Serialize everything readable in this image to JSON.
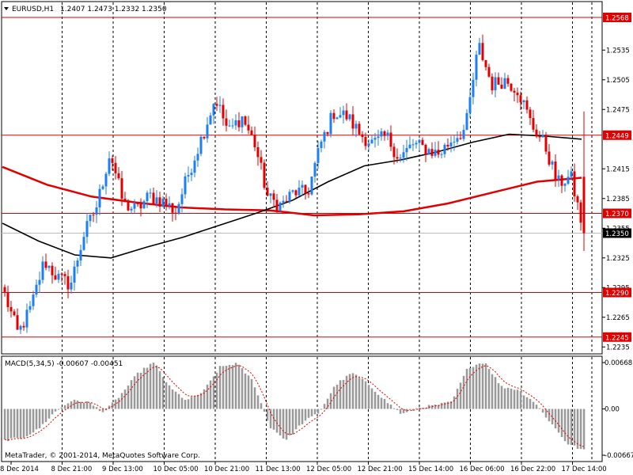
{
  "header": {
    "symbol": "EURUSD,H1",
    "ohlc": "1.2407 1.2473 1.2332 1.2350"
  },
  "macd": {
    "title": "MACD(5,34,5) -0.00607 -0.00451",
    "ticks": [
      "0.00668",
      "0.00",
      "-0.00667"
    ]
  },
  "footer": {
    "copyright": "MetaTrader, © 2001-2014, MetaQuotes Software Corp."
  },
  "colors": {
    "bull": "#1e7ff0",
    "bear": "#e00000",
    "level": "#e00000",
    "ma_slow": "#e00000",
    "ma_fast": "#000000",
    "macd_bar": "#999999",
    "macd_signal": "#e00000"
  },
  "chart_data": {
    "type": "candlestick",
    "price_axis": {
      "ylim": [
        1.2228,
        1.2584
      ],
      "ticks": [
        "1.2535",
        "1.2505",
        "1.2475",
        "1.2415",
        "1.2385",
        "1.2355",
        "1.2325",
        "1.2295",
        "1.2265",
        "1.2235"
      ]
    },
    "levels": [
      {
        "value": 1.2568,
        "label": "1.2568"
      },
      {
        "value": 1.2449,
        "label": "1.2449"
      },
      {
        "value": 1.237,
        "label": "1.2370"
      },
      {
        "value": 1.229,
        "label": "1.2290"
      },
      {
        "value": 1.2245,
        "label": "1.2245"
      }
    ],
    "current_price": {
      "value": 1.235,
      "label": "1.2350"
    },
    "x_labels": [
      "8 Dec 2014",
      "8 Dec 21:00",
      "9 Dec 13:00",
      "10 Dec 05:00",
      "10 Dec 21:00",
      "11 Dec 13:00",
      "12 Dec 05:00",
      "12 Dec 21:00",
      "15 Dec 14:00",
      "16 Dec 06:00",
      "16 Dec 22:00",
      "17 Dec 14:00"
    ],
    "price_anchors": [
      1.2288,
      1.2248,
      1.2275,
      1.2322,
      1.2305,
      1.2298,
      1.2348,
      1.2378,
      1.2432,
      1.238,
      1.2373,
      1.2388,
      1.2382,
      1.2372,
      1.2412,
      1.2448,
      1.2487,
      1.2452,
      1.2468,
      1.244,
      1.2385,
      1.2378,
      1.2392,
      1.239,
      1.244,
      1.2472,
      1.2468,
      1.245,
      1.244,
      1.2448,
      1.2425,
      1.244,
      1.2435,
      1.243,
      1.2445,
      1.2455,
      1.254,
      1.25,
      1.2505,
      1.2495,
      1.246,
      1.244,
      1.24,
      1.2407,
      1.235
    ],
    "ma_fast": [
      1.236,
      1.2342,
      1.2328,
      1.2325,
      1.2336,
      1.2346,
      1.2358,
      1.237,
      1.2383,
      1.2402,
      1.2418,
      1.2424,
      1.2432,
      1.2442,
      1.245,
      1.2448,
      1.2445
    ],
    "ma_slow": [
      1.2417,
      1.2399,
      1.2387,
      1.2381,
      1.2376,
      1.2374,
      1.2373,
      1.2368,
      1.2369,
      1.2372,
      1.238,
      1.2391,
      1.2402,
      1.2406
    ],
    "macd_values": [
      -0.0045,
      -0.0042,
      -0.003,
      -0.0005,
      0.0012,
      0.001,
      -0.0005,
      0.002,
      0.005,
      0.0068,
      0.003,
      0.0012,
      0.0025,
      0.006,
      0.0066,
      0.004,
      -0.0025,
      -0.0045,
      -0.002,
      -0.0005,
      0.0035,
      0.0052,
      0.0035,
      0.0012,
      -0.0008,
      0.0002,
      0.0005,
      0.001,
      0.006,
      0.0068,
      0.0032,
      0.0028,
      0.001,
      -0.002,
      -0.005,
      -0.006
    ]
  }
}
